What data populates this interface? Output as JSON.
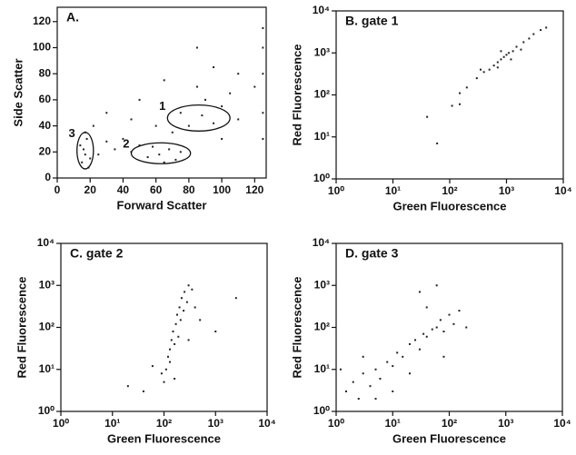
{
  "chart_data": [
    {
      "type": "scatter",
      "title": "A.",
      "xlabel": "Forward Scatter",
      "ylabel": "Side Scatter",
      "color": "#222",
      "log": false,
      "xlim": [
        0,
        127
      ],
      "ylim": [
        0,
        131
      ],
      "xticks": [
        0,
        20,
        40,
        60,
        80,
        100,
        120
      ],
      "yticks": [
        0,
        20,
        40,
        60,
        80,
        100,
        120
      ],
      "x": [
        15,
        16,
        18,
        17,
        19,
        14,
        20,
        17,
        45,
        55,
        62,
        68,
        72,
        58,
        65,
        75,
        50,
        40,
        35,
        30,
        80,
        88,
        95,
        100,
        90,
        85,
        105,
        110,
        95,
        75,
        70,
        60,
        45,
        120,
        125,
        125,
        125,
        125,
        125,
        110,
        100,
        30,
        50,
        65,
        85,
        25,
        22
      ],
      "values": [
        12,
        22,
        30,
        18,
        8,
        25,
        15,
        35,
        20,
        16,
        18,
        22,
        14,
        24,
        12,
        20,
        25,
        30,
        22,
        28,
        40,
        48,
        42,
        55,
        60,
        70,
        65,
        80,
        85,
        50,
        35,
        40,
        45,
        70,
        30,
        50,
        80,
        100,
        115,
        45,
        30,
        50,
        60,
        75,
        100,
        18,
        40
      ],
      "gates": [
        {
          "label": "1",
          "cx": 86,
          "cy": 46,
          "rx": 19,
          "ry": 10
        },
        {
          "label": "2",
          "cx": 63,
          "cy": 19,
          "rx": 18,
          "ry": 8
        },
        {
          "label": "3",
          "cx": 17,
          "cy": 21,
          "rx": 5,
          "ry": 14
        }
      ]
    },
    {
      "type": "scatter",
      "title": "B. gate 1",
      "xlabel": "Green Fluorescence",
      "ylabel": "Red Fluorescence",
      "color": "#222",
      "log": true,
      "xlim": [
        1,
        10000
      ],
      "ylim": [
        1,
        10000
      ],
      "xticks": [
        {
          "value": 1,
          "label": "10⁰"
        },
        {
          "value": 10,
          "label": "10¹"
        },
        {
          "value": 100,
          "label": "10²"
        },
        {
          "value": 1000,
          "label": "10³"
        },
        {
          "value": 10000,
          "label": "10⁴"
        }
      ],
      "yticks": [
        {
          "value": 1,
          "label": "10⁰"
        },
        {
          "value": 10,
          "label": "10¹"
        },
        {
          "value": 100,
          "label": "10²"
        },
        {
          "value": 1000,
          "label": "10³"
        },
        {
          "value": 10000,
          "label": "10⁴"
        }
      ],
      "x": [
        110,
        150,
        200,
        300,
        400,
        500,
        600,
        700,
        800,
        900,
        1000,
        1100,
        1300,
        1500,
        2000,
        2500,
        3000,
        4000,
        5000,
        350,
        700,
        1200,
        800,
        40,
        60,
        150,
        1800
      ],
      "values": [
        55,
        110,
        150,
        250,
        350,
        400,
        500,
        600,
        700,
        800,
        900,
        1000,
        1100,
        1400,
        1800,
        2200,
        2800,
        3500,
        4000,
        400,
        450,
        700,
        1100,
        30,
        7,
        60,
        1200
      ]
    },
    {
      "type": "scatter",
      "title": "C. gate 2",
      "xlabel": "Green Fluorescence",
      "ylabel": "Red Fluorescence",
      "color": "#222",
      "log": true,
      "xlim": [
        1,
        10000
      ],
      "ylim": [
        1,
        10000
      ],
      "xticks": [
        {
          "value": 1,
          "label": "10⁰"
        },
        {
          "value": 10,
          "label": "10¹"
        },
        {
          "value": 100,
          "label": "10²"
        },
        {
          "value": 1000,
          "label": "10³"
        },
        {
          "value": 10000,
          "label": "10⁴"
        }
      ],
      "yticks": [
        {
          "value": 1,
          "label": "10⁰"
        },
        {
          "value": 10,
          "label": "10¹"
        },
        {
          "value": 100,
          "label": "10²"
        },
        {
          "value": 1000,
          "label": "10³"
        },
        {
          "value": 10000,
          "label": "10⁴"
        }
      ],
      "x": [
        100,
        110,
        120,
        130,
        140,
        150,
        170,
        180,
        200,
        220,
        250,
        300,
        130,
        160,
        190,
        210,
        240,
        280,
        90,
        400,
        500,
        40,
        20,
        60,
        1000,
        2500,
        160,
        300,
        350
      ],
      "values": [
        5,
        10,
        20,
        30,
        50,
        80,
        120,
        200,
        300,
        500,
        700,
        1000,
        15,
        40,
        60,
        150,
        250,
        400,
        8,
        300,
        150,
        3,
        4,
        12,
        80,
        500,
        6,
        50,
        800
      ]
    },
    {
      "type": "scatter",
      "title": "D. gate 3",
      "xlabel": "Green Fluorescence",
      "ylabel": "Red Fluorescence",
      "color": "#222",
      "log": true,
      "xlim": [
        1,
        10000
      ],
      "ylim": [
        1,
        10000
      ],
      "xticks": [
        {
          "value": 1,
          "label": "10⁰"
        },
        {
          "value": 10,
          "label": "10¹"
        },
        {
          "value": 100,
          "label": "10²"
        },
        {
          "value": 1000,
          "label": "10³"
        },
        {
          "value": 10000,
          "label": "10⁴"
        }
      ],
      "yticks": [
        {
          "value": 1,
          "label": "10⁰"
        },
        {
          "value": 10,
          "label": "10¹"
        },
        {
          "value": 100,
          "label": "10²"
        },
        {
          "value": 1000,
          "label": "10³"
        },
        {
          "value": 10000,
          "label": "10⁴"
        }
      ],
      "x": [
        1.5,
        2,
        2.5,
        3,
        4,
        5,
        6,
        8,
        10,
        12,
        15,
        20,
        25,
        30,
        35,
        40,
        50,
        60,
        70,
        80,
        100,
        120,
        150,
        200,
        3,
        5,
        10,
        30,
        60,
        80,
        1.2,
        20,
        40
      ],
      "values": [
        3,
        5,
        2,
        8,
        4,
        10,
        6,
        15,
        12,
        25,
        20,
        40,
        50,
        30,
        70,
        60,
        90,
        100,
        150,
        80,
        200,
        120,
        250,
        100,
        20,
        2,
        3,
        700,
        1000,
        20,
        10,
        8,
        300
      ]
    }
  ]
}
